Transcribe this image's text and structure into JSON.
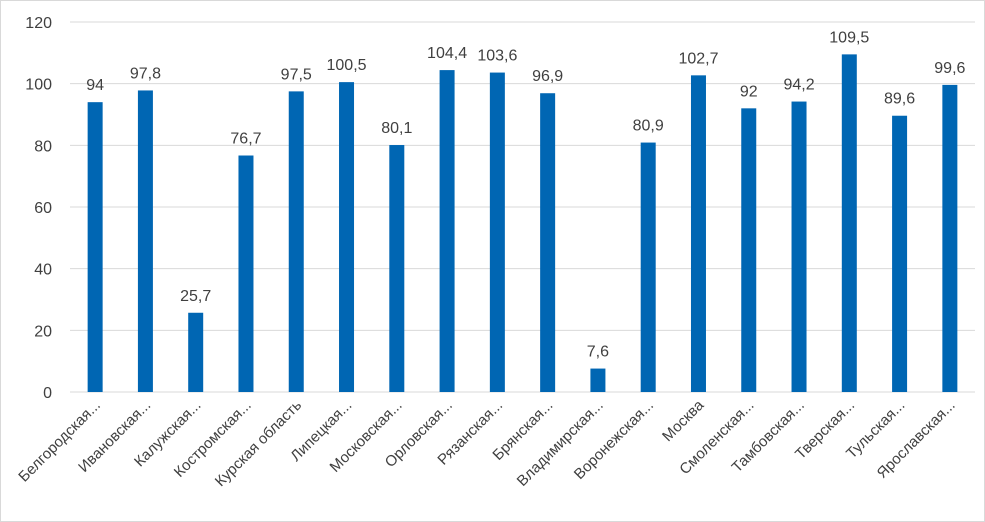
{
  "chart_data": {
    "type": "bar",
    "categories": [
      "Белгородская...",
      "Ивановская...",
      "Калужская...",
      "Костромская...",
      "Курская область",
      "Липецкая...",
      "Московская...",
      "Орловская...",
      "Рязанская...",
      "Брянская...",
      "Владимирская...",
      "Воронежская...",
      "Москва",
      "Смоленская...",
      "Тамбовская...",
      "Тверская...",
      "Тульская...",
      "Ярославская..."
    ],
    "values": [
      94,
      97.8,
      25.7,
      76.7,
      97.5,
      100.5,
      80.1,
      104.4,
      103.6,
      96.9,
      7.6,
      80.9,
      102.7,
      92,
      94.2,
      109.5,
      89.6,
      99.6
    ],
    "data_labels": [
      "94",
      "97,8",
      "25,7",
      "76,7",
      "97,5",
      "100,5",
      "80,1",
      "104,4",
      "103,6",
      "96,9",
      "7,6",
      "80,9",
      "102,7",
      "92",
      "94,2",
      "109,5",
      "89,6",
      "99,6"
    ],
    "y_ticks": [
      "0",
      "20",
      "40",
      "60",
      "80",
      "100",
      "120"
    ],
    "ylim": [
      0,
      120
    ],
    "grid": true,
    "legend": "none",
    "bar_color": "#0066b3",
    "grid_color": "#d9d9d9"
  }
}
